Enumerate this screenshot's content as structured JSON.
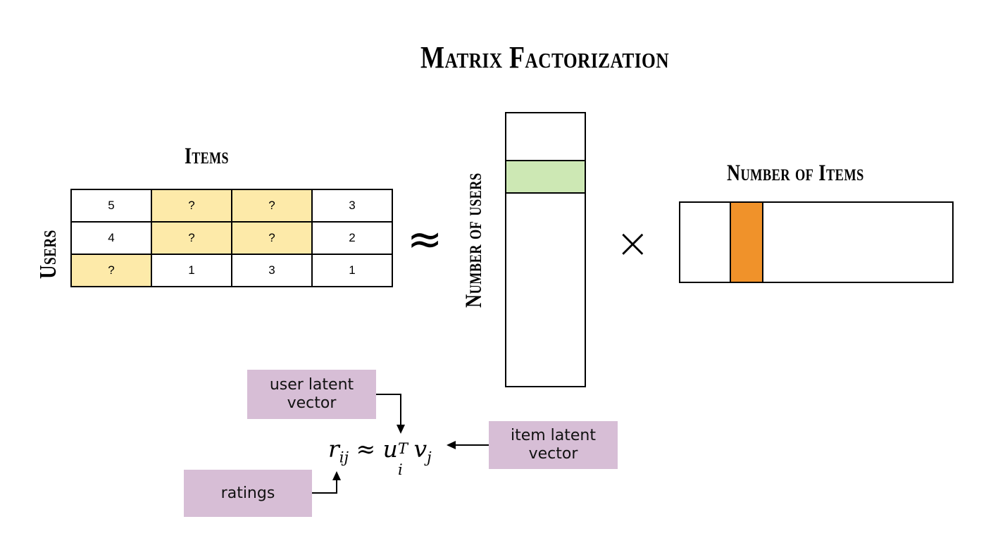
{
  "title": "Matrix Factorization",
  "items_label": "Items",
  "users_label": "Users",
  "users_count_label": "Number of users",
  "items_count_label": "Number of Items",
  "ratings_matrix": [
    [
      "5",
      "?",
      "?",
      "3"
    ],
    [
      "4",
      "?",
      "?",
      "2"
    ],
    [
      "?",
      "1",
      "3",
      "1"
    ]
  ],
  "approx_symbol": "≈",
  "times_symbol": "×",
  "formula": {
    "r": "r",
    "r_sub": "ij",
    "approx": "≈",
    "u": "u",
    "u_sup": "T",
    "u_sub": "i",
    "v": "v",
    "v_sub": "j"
  },
  "notes": {
    "user_latent": "user latent\nvector",
    "item_latent": "item latent\nvector",
    "ratings": "ratings"
  },
  "colors": {
    "unknown_cell": "#fdeaa9",
    "user_row": "#cde8b4",
    "item_col": "#f0922a",
    "note_bg": "#d7bed6"
  }
}
